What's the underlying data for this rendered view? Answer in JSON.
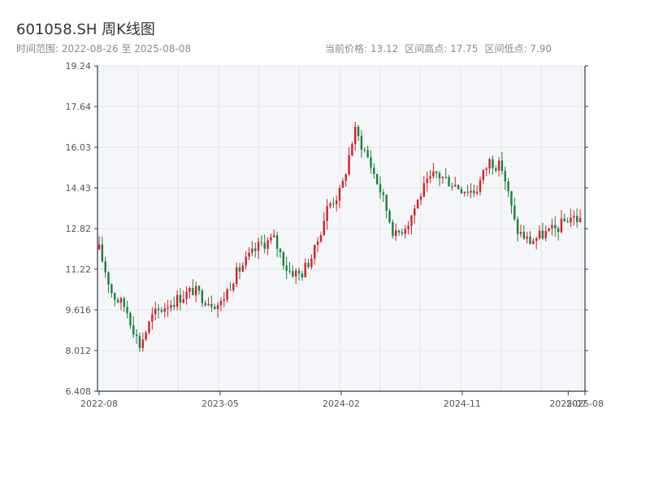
{
  "header": {
    "title": "601058.SH 周K线图",
    "range_label": "时间范围: 2022-08-26 至 2025-08-08",
    "current_price": "当前价格: 13.12",
    "range_high": "区间高点: 17.75",
    "range_low": "区间低点: 7.90"
  },
  "colors": {
    "up": "#d61f26",
    "down": "#17823c",
    "plot_bg": "#f5f6f9",
    "grid": "#e2e4e9",
    "axis": "#2b3a4a"
  },
  "chart_data": {
    "type": "candlestick",
    "title": "601058.SH 周K线图",
    "ylim": [
      6.408,
      19.24
    ],
    "yticks": [
      "19.24",
      "17.64",
      "16.03",
      "14.43",
      "12.82",
      "11.22",
      "9.616",
      "8.012",
      "6.408"
    ],
    "xticks": [
      "2022-08",
      "2023-05",
      "2024-02",
      "2024-11",
      "2025-07",
      "2025-08"
    ],
    "grid": true,
    "close_path": [
      [
        "2022-08",
        12.0
      ],
      [
        "2022-09",
        10.2
      ],
      [
        "2022-10",
        9.7
      ],
      [
        "2022-11",
        8.2
      ],
      [
        "2022-12",
        9.4
      ],
      [
        "2023-01",
        9.8
      ],
      [
        "2023-02",
        10.1
      ],
      [
        "2023-03",
        10.4
      ],
      [
        "2023-04",
        10.0
      ],
      [
        "2023-05",
        9.8
      ],
      [
        "2023-06",
        10.9
      ],
      [
        "2023-07",
        11.6
      ],
      [
        "2023-08",
        12.2
      ],
      [
        "2023-09",
        12.4
      ],
      [
        "2023-10",
        11.2
      ],
      [
        "2023-11",
        11.0
      ],
      [
        "2023-12",
        11.9
      ],
      [
        "2024-01",
        13.7
      ],
      [
        "2024-02",
        14.3
      ],
      [
        "2024-03",
        16.7
      ],
      [
        "2024-04",
        15.6
      ],
      [
        "2024-05",
        14.2
      ],
      [
        "2024-06",
        12.5
      ],
      [
        "2024-07",
        13.1
      ],
      [
        "2024-08",
        14.3
      ],
      [
        "2024-09",
        15.0
      ],
      [
        "2024-10",
        14.7
      ],
      [
        "2024-11",
        14.4
      ],
      [
        "2024-12",
        14.3
      ],
      [
        "2025-01",
        15.5
      ],
      [
        "2025-02",
        15.2
      ],
      [
        "2025-03",
        12.8
      ],
      [
        "2025-04",
        12.3
      ],
      [
        "2025-05",
        12.6
      ],
      [
        "2025-06",
        12.8
      ],
      [
        "2025-07",
        13.3
      ],
      [
        "2025-08",
        13.12
      ]
    ]
  }
}
